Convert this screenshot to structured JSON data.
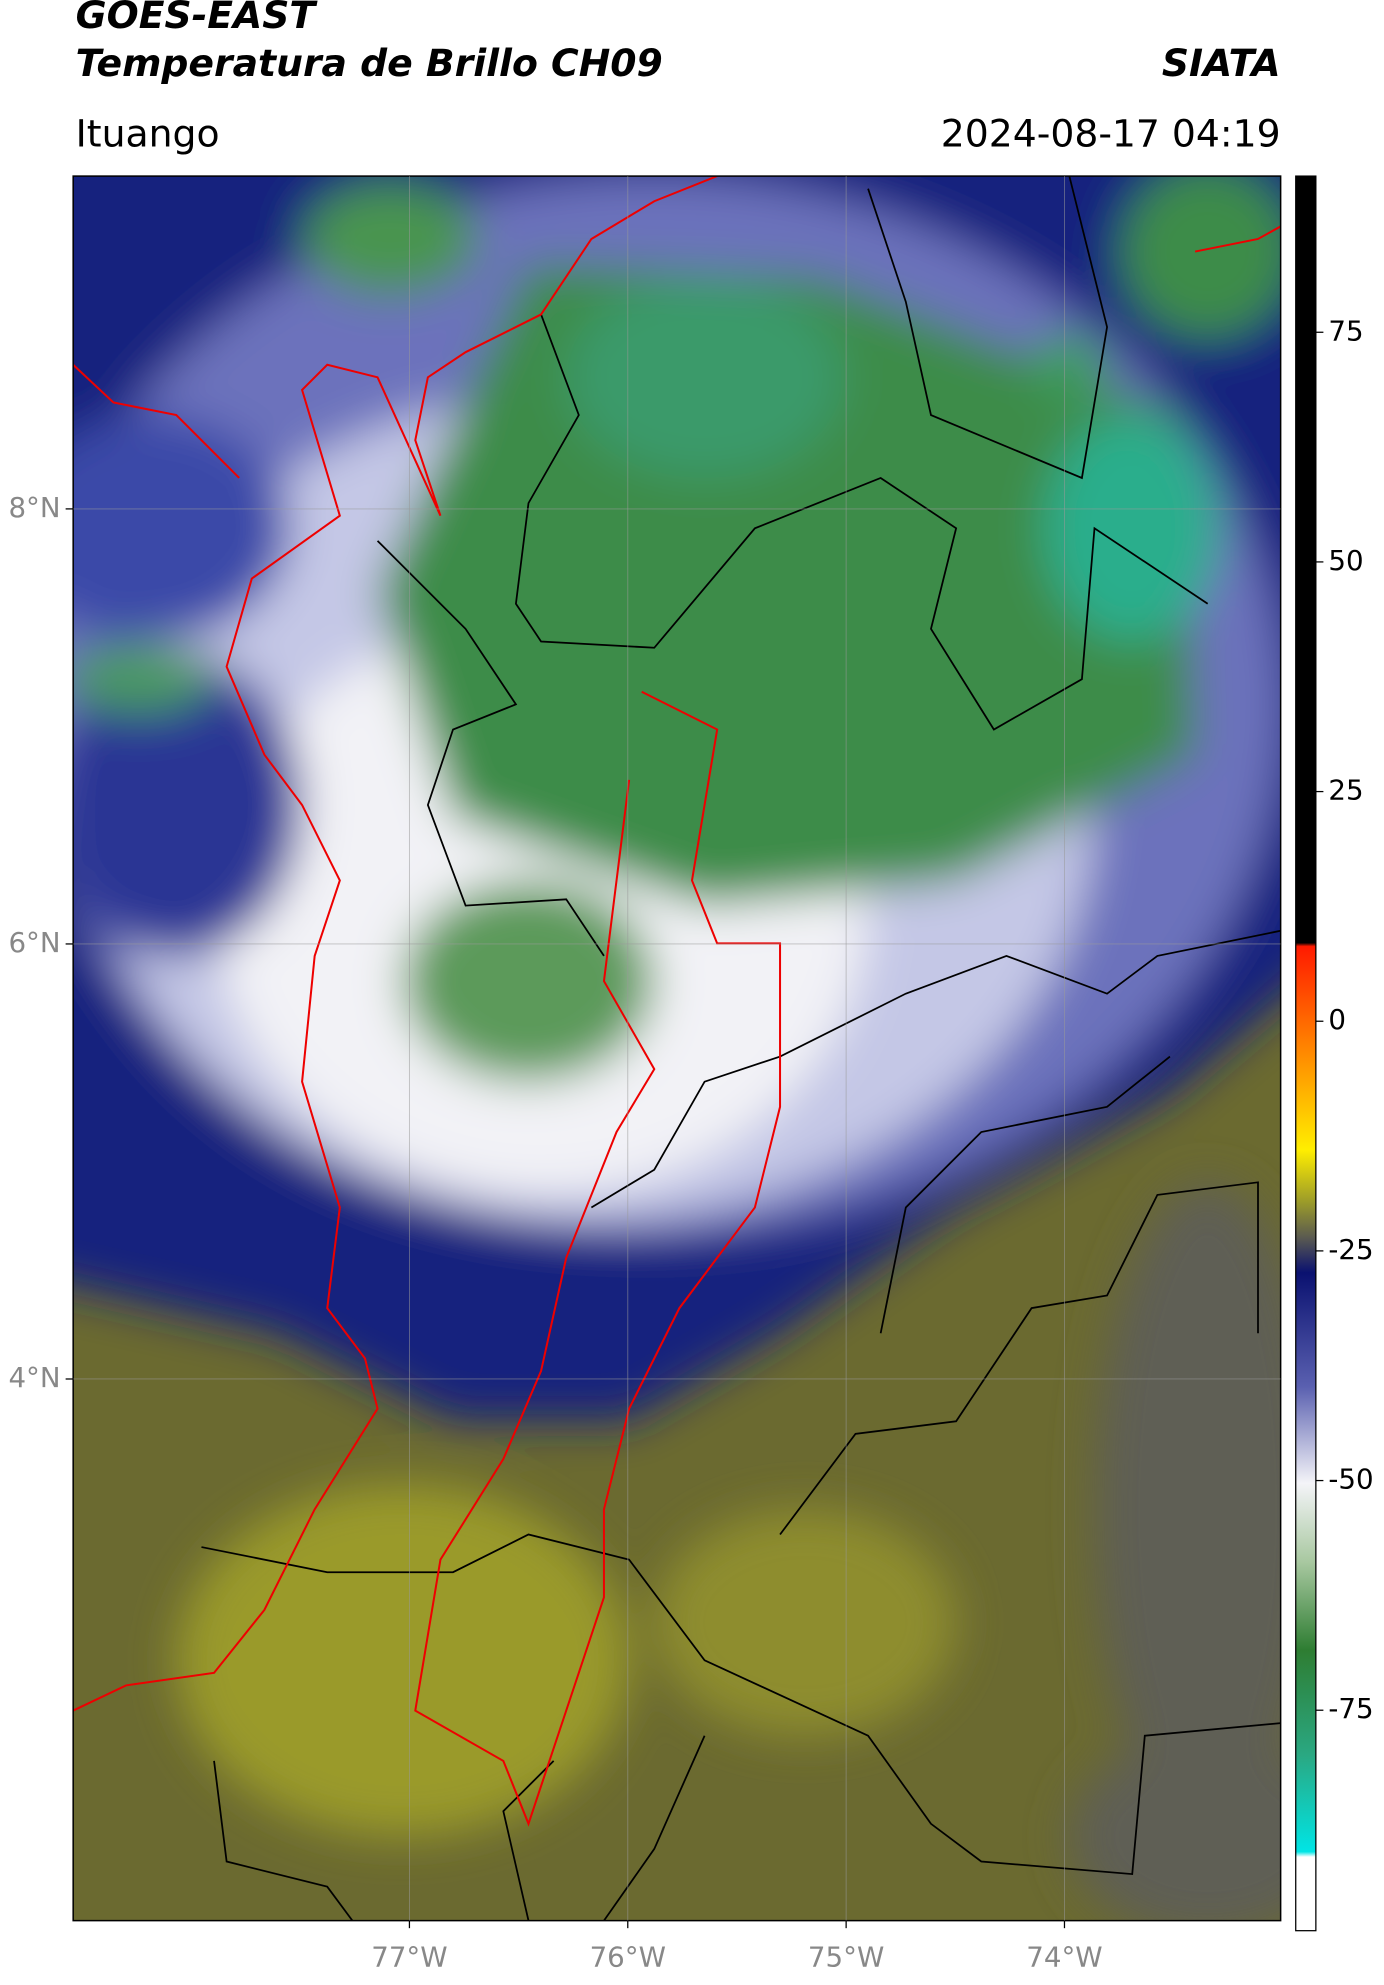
{
  "map": {
    "title": "GOES-EAST",
    "subtitle": "Temperatura de Brillo CH09",
    "source": "SIATA",
    "location": "Ituango",
    "datetime": "2024-08-17 04:19",
    "xlim": [
      -78.54,
      -73.01
    ],
    "ylim": [
      1.51,
      9.53
    ],
    "xticks": [
      {
        "value": -77,
        "label": "77°W"
      },
      {
        "value": -76,
        "label": "76°W"
      },
      {
        "value": -75,
        "label": "75°W"
      },
      {
        "value": -74,
        "label": "74°W"
      }
    ],
    "yticks": [
      {
        "value": 8,
        "label": "8°N"
      },
      {
        "value": 6,
        "label": "6°N"
      },
      {
        "value": 4,
        "label": "4°N"
      }
    ],
    "grid": true,
    "colorbar": {
      "clim": [
        -99,
        92
      ],
      "ticks": [
        75,
        50,
        25,
        0,
        -25,
        -50,
        -75
      ]
    }
  }
}
